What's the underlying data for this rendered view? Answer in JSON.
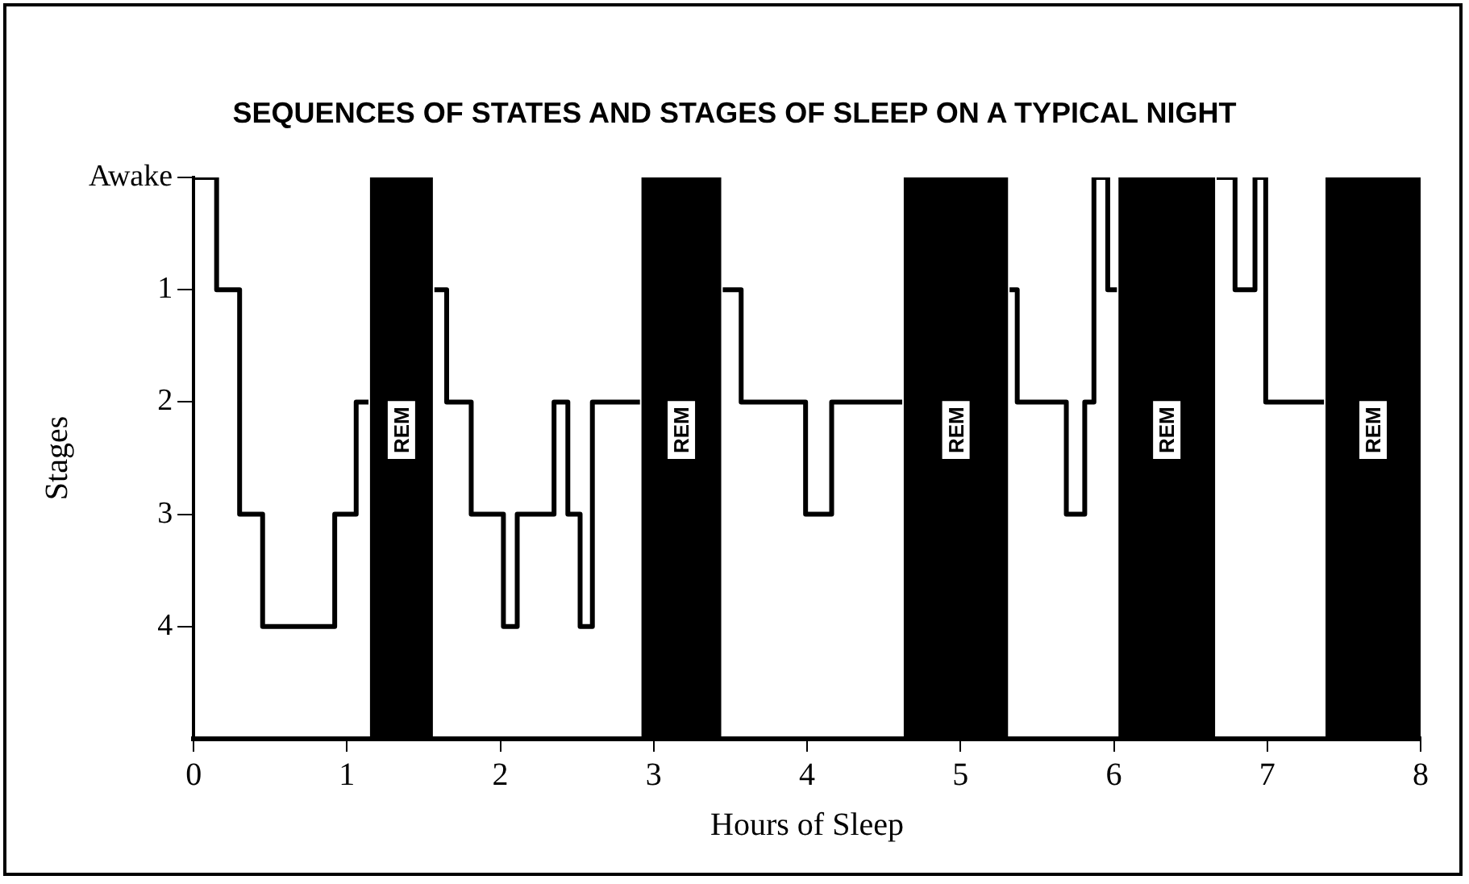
{
  "chart_data": {
    "type": "step",
    "title": "SEQUENCES OF STATES AND STAGES OF SLEEP ON A TYPICAL NIGHT",
    "xlabel": "Hours of Sleep",
    "ylabel": "Stages",
    "series": [
      {
        "color": "#000000",
        "x": [
          0,
          0.15,
          0.3,
          0.45,
          0.92,
          1.06,
          1.14
        ],
        "values": [
          0,
          1,
          3,
          4,
          3,
          2,
          2
        ]
      },
      {
        "color": "#000000",
        "x": [
          1.57,
          1.65,
          1.81,
          2.02,
          2.11,
          2.35,
          2.44,
          2.52,
          2.6,
          2.91
        ],
        "values": [
          1,
          2,
          3,
          4,
          3,
          2,
          3,
          4,
          2,
          2
        ]
      },
      {
        "color": "#000000",
        "x": [
          3.45,
          3.57,
          3.99,
          4.16,
          4.62
        ],
        "values": [
          1,
          2,
          3,
          2,
          2
        ]
      },
      {
        "color": "#000000",
        "x": [
          5.32,
          5.37,
          5.69,
          5.81,
          5.87,
          5.96,
          6.02
        ],
        "values": [
          1,
          2,
          3,
          2,
          0,
          1,
          1
        ]
      },
      {
        "color": "#000000",
        "x": [
          6.67,
          6.79,
          6.92,
          6.99,
          7.37
        ],
        "values": [
          0,
          1,
          0,
          2,
          2
        ]
      }
    ],
    "xlim": [
      0,
      8
    ],
    "xticks": [
      0,
      1,
      2,
      3,
      4,
      5,
      6,
      7,
      8
    ],
    "ylim": [
      5,
      0
    ],
    "yticks": [
      {
        "value": 0,
        "label": "Awake"
      },
      1,
      2,
      3,
      4
    ],
    "bands": [
      {
        "axis": "x",
        "from": 1.15,
        "to": 1.56,
        "label": "REM",
        "color": "#000000"
      },
      {
        "axis": "x",
        "from": 2.92,
        "to": 3.44,
        "label": "REM",
        "color": "#000000"
      },
      {
        "axis": "x",
        "from": 4.63,
        "to": 5.31,
        "label": "REM",
        "color": "#000000"
      },
      {
        "axis": "x",
        "from": 6.03,
        "to": 6.66,
        "label": "REM",
        "color": "#000000"
      },
      {
        "axis": "x",
        "from": 7.38,
        "to": 8,
        "label": "REM",
        "color": "#000000"
      }
    ],
    "grid": false,
    "legend": false,
    "marker": "none",
    "line_style": "solid"
  }
}
